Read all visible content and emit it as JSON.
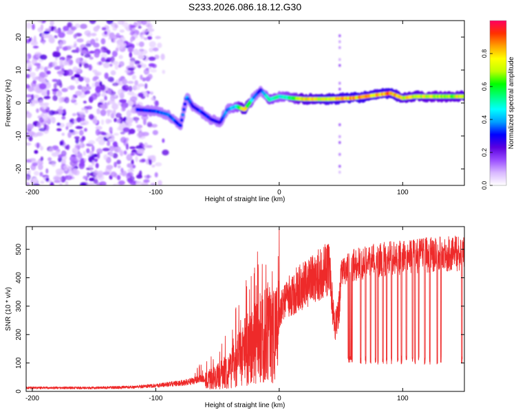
{
  "page_title": "S233.2026.086.18.12.G30",
  "chart_data": [
    {
      "type": "heatmap",
      "title": "S233.2026.086.18.12.G30",
      "xlabel": "Height of straight line (km)",
      "ylabel": "Frequency (Hz)",
      "xlim": [
        -205,
        150
      ],
      "ylim": [
        -25,
        25
      ],
      "x_ticks": [
        -200,
        -100,
        0,
        100
      ],
      "y_ticks": [
        -20,
        -10,
        0,
        10,
        20
      ],
      "colorbar": {
        "label": "Normalized spectral amplitude",
        "range": [
          0,
          1
        ],
        "ticks": [
          0.0,
          0.2,
          0.4,
          0.6,
          0.8
        ],
        "colormap": [
          "#ffffff",
          "#d9b8ff",
          "#9a4dff",
          "#5a00e0",
          "#0000ff",
          "#00a0ff",
          "#00ffff",
          "#00ff80",
          "#00ff00",
          "#c0ff00",
          "#ffff00",
          "#ffa000",
          "#ff3000",
          "#ff0060"
        ]
      },
      "ridge": {
        "x": [
          -115,
          -100,
          -90,
          -80,
          -75,
          -70,
          -62,
          -55,
          -48,
          -42,
          -35,
          -28,
          -20,
          -15,
          -8,
          0,
          10,
          20,
          40,
          60,
          80,
          90,
          100,
          110,
          130,
          150
        ],
        "freq": [
          -2,
          -2.5,
          -3.5,
          -7,
          2,
          -1,
          -3,
          -5,
          -6,
          -2,
          -1,
          -2,
          2,
          4,
          1,
          2,
          1.5,
          1.2,
          1.2,
          1.5,
          2.5,
          3,
          1.5,
          2,
          2,
          2
        ],
        "amplitude": [
          0.3,
          0.35,
          0.4,
          0.35,
          0.4,
          0.3,
          0.35,
          0.3,
          0.3,
          0.4,
          0.5,
          0.85,
          0.4,
          0.3,
          0.6,
          0.5,
          0.6,
          0.8,
          0.85,
          0.9,
          0.85,
          0.9,
          0.8,
          0.8,
          0.75,
          0.8
        ]
      },
      "noise_region_x": [
        -205,
        -110
      ],
      "vertical_streak_x": 49
    },
    {
      "type": "line",
      "title": "",
      "xlabel": "Height of straight line (km)",
      "ylabel": "SNR (10 * v/v)",
      "xlim": [
        -205,
        150
      ],
      "ylim": [
        0,
        580
      ],
      "x_ticks": [
        -200,
        -100,
        0,
        100
      ],
      "y_ticks": [
        0,
        100,
        200,
        300,
        400,
        500
      ],
      "series": [
        {
          "name": "SNR",
          "color": "#ee2a2a",
          "envelope_x": [
            -205,
            -150,
            -120,
            -100,
            -80,
            -60,
            -50,
            -40,
            -30,
            -20,
            -10,
            0,
            10,
            20,
            30,
            35,
            40,
            42,
            45,
            48,
            50,
            55,
            60,
            80,
            100,
            120,
            150
          ],
          "envelope_y": [
            15,
            15,
            18,
            25,
            35,
            55,
            80,
            120,
            200,
            260,
            320,
            330,
            390,
            430,
            460,
            480,
            500,
            410,
            260,
            300,
            440,
            470,
            480,
            500,
            510,
            520,
            525
          ],
          "dropouts_x": [
            56,
            57,
            58,
            59,
            66,
            70,
            74,
            78,
            80,
            84,
            87,
            91,
            96,
            99,
            103,
            108,
            110,
            113,
            118,
            122,
            128,
            131,
            148
          ]
        }
      ]
    }
  ]
}
